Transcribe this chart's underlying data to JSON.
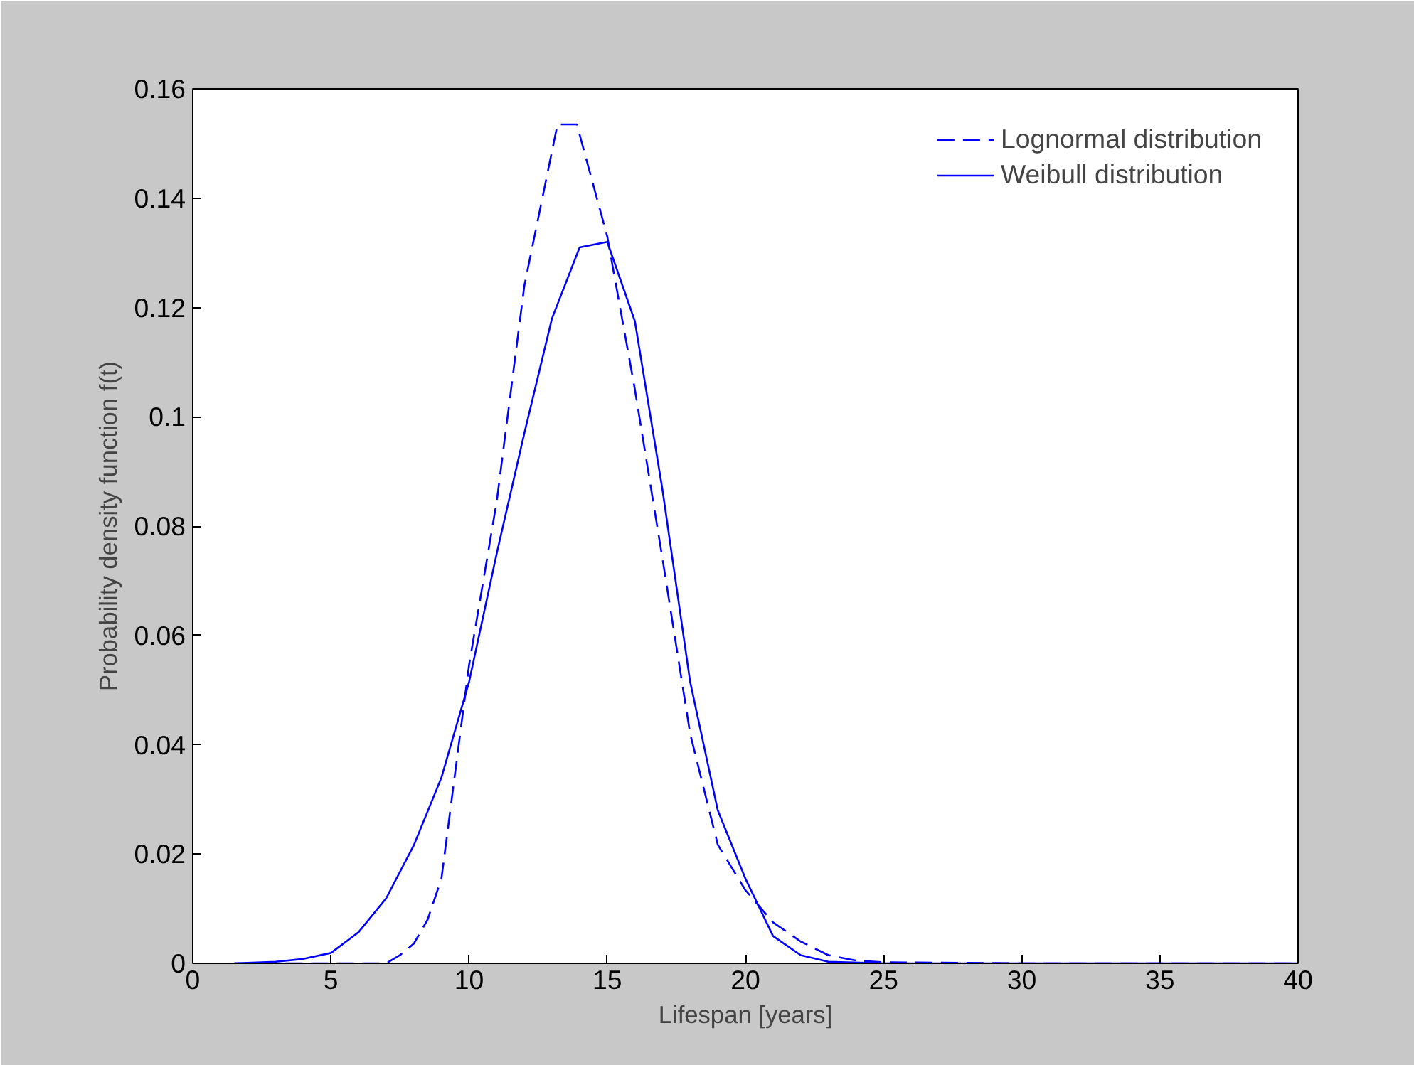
{
  "chart_data": {
    "type": "line",
    "xlabel": "Lifespan [years]",
    "ylabel": "Probability density function f(t)",
    "xlim": [
      0,
      40
    ],
    "ylim": [
      0,
      0.16
    ],
    "xticks": [
      0,
      5,
      10,
      15,
      20,
      25,
      30,
      35,
      40
    ],
    "yticks": [
      0,
      0.02,
      0.04,
      0.06,
      0.08,
      0.1,
      0.12,
      0.14,
      0.16
    ],
    "grid": false,
    "legend": "top right",
    "marker": "none",
    "series": [
      {
        "name": "Lognormal distribution",
        "color": "#0000ff",
        "line_style": "dashed",
        "x": [
          1.5,
          7,
          7.5,
          8,
          8.5,
          9,
          10,
          11,
          12,
          13.2,
          13.9,
          15,
          16,
          17,
          18,
          19,
          20,
          21,
          22,
          23,
          24,
          25,
          30,
          40
        ],
        "values": [
          0,
          0,
          0.0015,
          0.0036,
          0.008,
          0.0155,
          0.0546,
          0.0845,
          0.124,
          0.1535,
          0.1535,
          0.133,
          0.105,
          0.074,
          0.042,
          0.0217,
          0.0134,
          0.0075,
          0.004,
          0.0015,
          0.0005,
          0.0002,
          0,
          0
        ]
      },
      {
        "name": "Weibull distribution",
        "color": "#0000ff",
        "line_style": "solid",
        "x": [
          1.5,
          3,
          4,
          5,
          6,
          7,
          8,
          9,
          10,
          11,
          12,
          13,
          14,
          15,
          16,
          17,
          18,
          19,
          20,
          21,
          22,
          23,
          25,
          40
        ],
        "values": [
          0,
          0.0003,
          0.0008,
          0.0019,
          0.0057,
          0.0119,
          0.0216,
          0.034,
          0.0515,
          0.075,
          0.097,
          0.118,
          0.131,
          0.132,
          0.1175,
          0.0866,
          0.0515,
          0.028,
          0.0155,
          0.005,
          0.0015,
          0.0003,
          0,
          0
        ]
      }
    ]
  }
}
